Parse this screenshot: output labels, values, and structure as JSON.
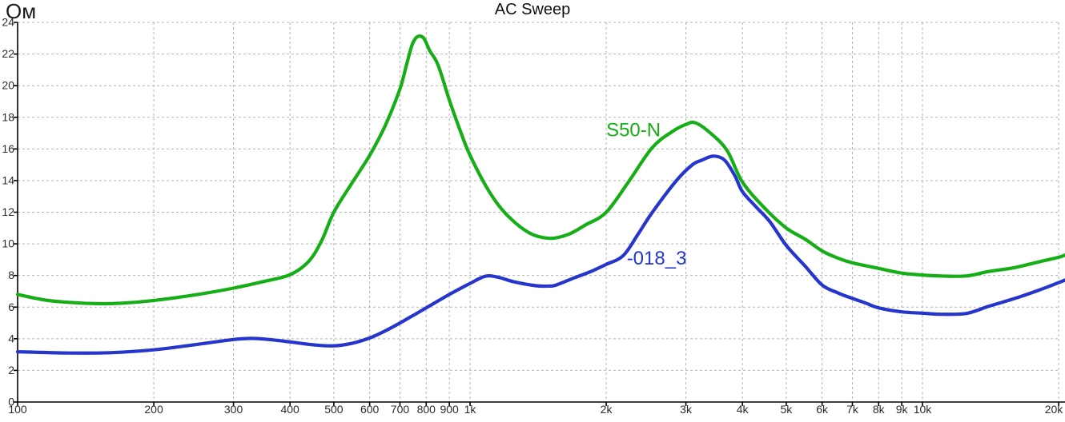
{
  "chart_data": {
    "type": "line",
    "title": "AC Sweep",
    "x_axis": {
      "scale": "log",
      "min": 100,
      "max": 20700,
      "ticks": [
        {
          "f": 100,
          "label": "100"
        },
        {
          "f": 200,
          "label": "200"
        },
        {
          "f": 300,
          "label": "300"
        },
        {
          "f": 400,
          "label": "400"
        },
        {
          "f": 500,
          "label": "500"
        },
        {
          "f": 600,
          "label": "600"
        },
        {
          "f": 700,
          "label": "700"
        },
        {
          "f": 800,
          "label": "800"
        },
        {
          "f": 900,
          "label": "900"
        },
        {
          "f": 1000,
          "label": "1k"
        },
        {
          "f": 2000,
          "label": "2k"
        },
        {
          "f": 3000,
          "label": "3k"
        },
        {
          "f": 4000,
          "label": "4k"
        },
        {
          "f": 5000,
          "label": "5k"
        },
        {
          "f": 6000,
          "label": "6k"
        },
        {
          "f": 7000,
          "label": "7k"
        },
        {
          "f": 8000,
          "label": "8k"
        },
        {
          "f": 9000,
          "label": "9k"
        },
        {
          "f": 10000,
          "label": "10k"
        },
        {
          "f": 20000,
          "label": "20k"
        }
      ]
    },
    "y_axis": {
      "unit": "Ом",
      "min": 0,
      "max": 24,
      "step": 2
    },
    "grid": {
      "show": true,
      "color": "#b3b3b3",
      "style": "dashed"
    },
    "axis_color": "#000000",
    "tick_label_color": "#2b2b2b",
    "series": [
      {
        "name": "S50-N",
        "color": "#16ae16",
        "label": {
          "text": "S50-N",
          "f": 2000,
          "ohm": 16.8
        },
        "points": [
          [
            100,
            6.8
          ],
          [
            115,
            6.45
          ],
          [
            130,
            6.3
          ],
          [
            150,
            6.22
          ],
          [
            170,
            6.25
          ],
          [
            200,
            6.42
          ],
          [
            250,
            6.8
          ],
          [
            300,
            7.2
          ],
          [
            350,
            7.62
          ],
          [
            400,
            8.05
          ],
          [
            440,
            8.9
          ],
          [
            470,
            10.2
          ],
          [
            500,
            12.0
          ],
          [
            550,
            13.9
          ],
          [
            600,
            15.6
          ],
          [
            650,
            17.5
          ],
          [
            700,
            19.8
          ],
          [
            725,
            21.4
          ],
          [
            745,
            22.6
          ],
          [
            765,
            23.1
          ],
          [
            790,
            23.0
          ],
          [
            815,
            22.2
          ],
          [
            850,
            21.3
          ],
          [
            900,
            19.1
          ],
          [
            950,
            17.2
          ],
          [
            1000,
            15.6
          ],
          [
            1100,
            13.35
          ],
          [
            1200,
            11.9
          ],
          [
            1350,
            10.7
          ],
          [
            1500,
            10.35
          ],
          [
            1650,
            10.6
          ],
          [
            1800,
            11.2
          ],
          [
            2000,
            12.0
          ],
          [
            2250,
            14.0
          ],
          [
            2530,
            16.1
          ],
          [
            2800,
            17.1
          ],
          [
            3000,
            17.55
          ],
          [
            3150,
            17.65
          ],
          [
            3400,
            17.0
          ],
          [
            3700,
            15.9
          ],
          [
            4000,
            13.9
          ],
          [
            4500,
            12.2
          ],
          [
            5000,
            11.0
          ],
          [
            5500,
            10.3
          ],
          [
            6000,
            9.55
          ],
          [
            6500,
            9.1
          ],
          [
            7000,
            8.8
          ],
          [
            8000,
            8.45
          ],
          [
            9000,
            8.15
          ],
          [
            10000,
            8.03
          ],
          [
            11000,
            7.97
          ],
          [
            12500,
            7.97
          ],
          [
            14000,
            8.25
          ],
          [
            16000,
            8.5
          ],
          [
            18000,
            8.85
          ],
          [
            20000,
            9.15
          ],
          [
            20700,
            9.3
          ]
        ]
      },
      {
        "name": "-018_3",
        "color": "#2636cd",
        "label": {
          "text": "-018_3",
          "f": 2220,
          "ohm": 8.7
        },
        "points": [
          [
            100,
            3.18
          ],
          [
            130,
            3.1
          ],
          [
            160,
            3.12
          ],
          [
            200,
            3.3
          ],
          [
            250,
            3.65
          ],
          [
            300,
            3.95
          ],
          [
            330,
            4.02
          ],
          [
            360,
            3.95
          ],
          [
            400,
            3.8
          ],
          [
            450,
            3.62
          ],
          [
            500,
            3.55
          ],
          [
            550,
            3.72
          ],
          [
            600,
            4.05
          ],
          [
            650,
            4.5
          ],
          [
            700,
            5.0
          ],
          [
            800,
            5.95
          ],
          [
            900,
            6.8
          ],
          [
            1000,
            7.5
          ],
          [
            1080,
            7.95
          ],
          [
            1150,
            7.9
          ],
          [
            1250,
            7.6
          ],
          [
            1400,
            7.35
          ],
          [
            1500,
            7.33
          ],
          [
            1550,
            7.4
          ],
          [
            1700,
            7.85
          ],
          [
            1850,
            8.25
          ],
          [
            2000,
            8.7
          ],
          [
            2180,
            9.25
          ],
          [
            2350,
            10.6
          ],
          [
            2530,
            12.0
          ],
          [
            2860,
            14.0
          ],
          [
            3100,
            15.0
          ],
          [
            3260,
            15.3
          ],
          [
            3450,
            15.55
          ],
          [
            3650,
            15.3
          ],
          [
            3850,
            14.3
          ],
          [
            4000,
            13.3
          ],
          [
            4300,
            12.3
          ],
          [
            4600,
            11.4
          ],
          [
            5000,
            9.9
          ],
          [
            5500,
            8.6
          ],
          [
            6000,
            7.4
          ],
          [
            6500,
            6.9
          ],
          [
            7000,
            6.55
          ],
          [
            7500,
            6.25
          ],
          [
            8000,
            5.95
          ],
          [
            9000,
            5.7
          ],
          [
            10000,
            5.62
          ],
          [
            11000,
            5.55
          ],
          [
            12500,
            5.6
          ],
          [
            14000,
            6.05
          ],
          [
            16000,
            6.55
          ],
          [
            18000,
            7.05
          ],
          [
            20000,
            7.55
          ],
          [
            20700,
            7.72
          ]
        ]
      }
    ]
  }
}
